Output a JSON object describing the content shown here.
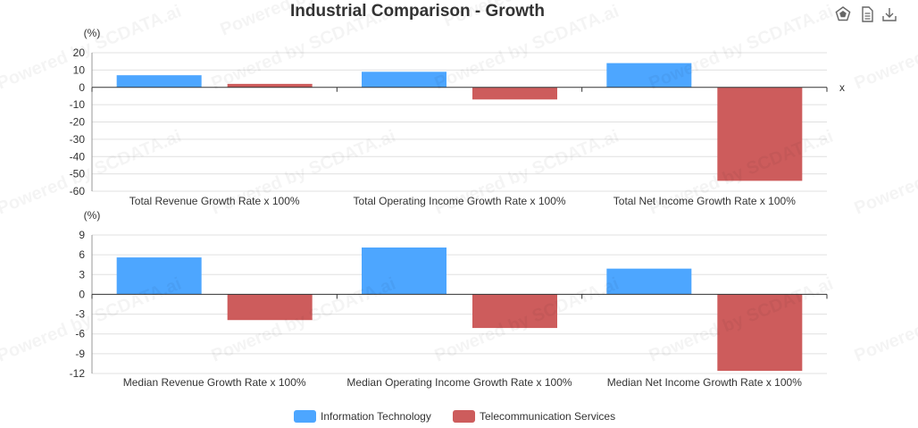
{
  "title": "Industrial Comparison - Growth",
  "toolbox": [
    {
      "name": "radar-view-icon",
      "icon": "radar"
    },
    {
      "name": "data-view-icon",
      "icon": "document"
    },
    {
      "name": "save-image-icon",
      "icon": "download"
    }
  ],
  "watermark": "Powered by SCDATA.ai",
  "colors": {
    "information_technology": "#4da6ff",
    "telecommunication_services": "#cd5c5c"
  },
  "legend": [
    {
      "label": "Information Technology",
      "color": "#4da6ff"
    },
    {
      "label": "Telecommunication Services",
      "color": "#cd5c5c"
    }
  ],
  "chart_data": [
    {
      "type": "bar",
      "unit": "(%)",
      "x_axis_name": "x",
      "categories": [
        "Total Revenue Growth Rate x 100%",
        "Total Operating Income Growth Rate x 100%",
        "Total Net Income Growth Rate x 100%"
      ],
      "series": [
        {
          "name": "Information Technology",
          "values": [
            7,
            9,
            14
          ]
        },
        {
          "name": "Telecommunication Services",
          "values": [
            2,
            -7,
            -54
          ]
        }
      ],
      "ylim": [
        -60,
        20
      ],
      "yticks": [
        "20",
        "10",
        "0",
        "-10",
        "-20",
        "-30",
        "-40",
        "-50",
        "-60"
      ],
      "grid": true
    },
    {
      "type": "bar",
      "unit": "(%)",
      "categories": [
        "Median Revenue Growth Rate x 100%",
        "Median Operating Income Growth Rate x 100%",
        "Median Net Income Growth Rate x 100%"
      ],
      "series": [
        {
          "name": "Information Technology",
          "values": [
            5.6,
            7.1,
            3.9
          ]
        },
        {
          "name": "Telecommunication Services",
          "values": [
            -3.9,
            -5.1,
            -11.6
          ]
        }
      ],
      "ylim": [
        -12,
        9
      ],
      "yticks": [
        "9",
        "6",
        "3",
        "0",
        "-3",
        "-6",
        "-9",
        "-12"
      ],
      "grid": true
    }
  ]
}
